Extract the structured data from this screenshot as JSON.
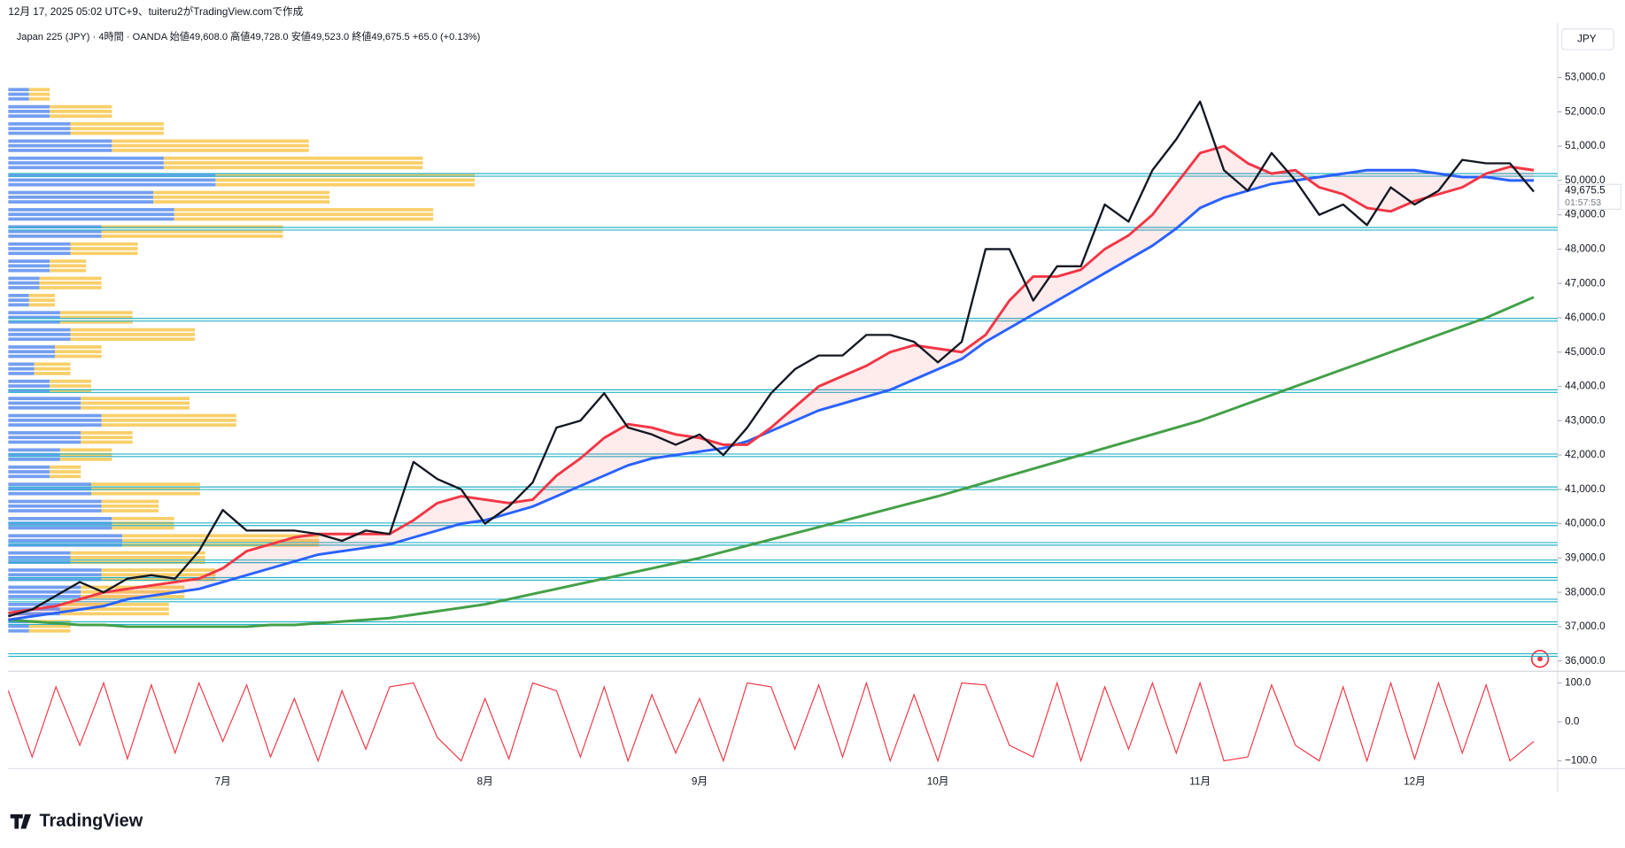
{
  "chart_data": {
    "type": "line",
    "caption": "12月 17, 2025 05:02 UTC+9、tuiteru2がTradingView.comで作成",
    "title": "Japan 225 (JPY) · 4時間 · OANDA  始値49,608.0  高値49,728.0  安値49,523.0  終値49,675.5  +65.0 (+0.13%)",
    "currency": "JPY",
    "brand": "TradingView",
    "last_price_label": "49,675.5",
    "countdown": "01:57:53",
    "categories": [
      null,
      null,
      null,
      null,
      null,
      null,
      null,
      null,
      null,
      "7月",
      null,
      null,
      null,
      null,
      null,
      null,
      null,
      null,
      null,
      null,
      "8月",
      null,
      null,
      null,
      null,
      null,
      null,
      null,
      null,
      "9月",
      null,
      null,
      null,
      null,
      null,
      null,
      null,
      null,
      null,
      "10月",
      null,
      null,
      null,
      null,
      null,
      null,
      null,
      null,
      null,
      null,
      "11月",
      null,
      null,
      null,
      null,
      null,
      null,
      null,
      null,
      "12月",
      null,
      null,
      null,
      null,
      null
    ],
    "series": [
      {
        "color": "#131722",
        "width": 2,
        "values": [
          37300,
          37500,
          37900,
          38300,
          38000,
          38400,
          38500,
          38400,
          39200,
          40400,
          39800,
          39800,
          39800,
          39700,
          39500,
          39800,
          39700,
          41800,
          41300,
          41000,
          40000,
          40500,
          41200,
          42800,
          43000,
          43800,
          42800,
          42600,
          42300,
          42600,
          42000,
          42800,
          43800,
          44500,
          44900,
          44900,
          45500,
          45500,
          45300,
          44700,
          45300,
          48000,
          48000,
          46500,
          47500,
          47500,
          49300,
          48800,
          50300,
          51200,
          52300,
          50300,
          49700,
          50800,
          50000,
          49000,
          49300,
          48700,
          49800,
          49300,
          49700,
          50600,
          50500,
          50500,
          49675.5
        ]
      },
      {
        "color": "#f23645",
        "width": 2.5,
        "values": [
          37400,
          37500,
          37600,
          37800,
          38000,
          38100,
          38200,
          38300,
          38400,
          38700,
          39200,
          39400,
          39600,
          39700,
          39700,
          39700,
          39700,
          40100,
          40600,
          40800,
          40700,
          40600,
          40700,
          41400,
          41900,
          42500,
          42900,
          42800,
          42600,
          42500,
          42300,
          42300,
          42800,
          43400,
          44000,
          44300,
          44600,
          45000,
          45200,
          45100,
          45000,
          45500,
          46500,
          47200,
          47200,
          47400,
          48000,
          48400,
          49000,
          49900,
          50800,
          51000,
          50500,
          50200,
          50300,
          49800,
          49600,
          49200,
          49100,
          49400,
          49600,
          49800,
          50200,
          50400,
          50300
        ]
      },
      {
        "color": "#2962ff",
        "width": 2.5,
        "values": [
          37200,
          37300,
          37400,
          37500,
          37600,
          37800,
          37900,
          38000,
          38100,
          38300,
          38500,
          38700,
          38900,
          39100,
          39200,
          39300,
          39400,
          39600,
          39800,
          40000,
          40100,
          40300,
          40500,
          40800,
          41100,
          41400,
          41700,
          41900,
          42000,
          42100,
          42200,
          42400,
          42700,
          43000,
          43300,
          43500,
          43700,
          43900,
          44200,
          44500,
          44800,
          45300,
          45700,
          46100,
          46500,
          46900,
          47300,
          47700,
          48100,
          48600,
          49200,
          49500,
          49700,
          49900,
          50000,
          50100,
          50200,
          50300,
          50300,
          50300,
          50200,
          50100,
          50100,
          50000,
          50000
        ]
      },
      {
        "color": "#43a047",
        "width": 2.5,
        "values": [
          37200,
          37150,
          37100,
          37050,
          37050,
          37000,
          37000,
          37000,
          37000,
          37000,
          37000,
          37050,
          37050,
          37100,
          37150,
          37200,
          37250,
          37350,
          37450,
          37550,
          37650,
          37800,
          37950,
          38100,
          38250,
          38400,
          38550,
          38700,
          38850,
          39000,
          39180,
          39360,
          39540,
          39720,
          39900,
          40080,
          40260,
          40440,
          40620,
          40800,
          41000,
          41200,
          41400,
          41600,
          41800,
          42000,
          42200,
          42400,
          42600,
          42800,
          43000,
          43250,
          43500,
          43750,
          44000,
          44250,
          44500,
          44750,
          45000,
          45250,
          45500,
          45750,
          46000,
          46300,
          46600
        ]
      }
    ],
    "ylim": [
      35700,
      53900
    ],
    "yticks": [
      {
        "value": 53000,
        "label": "53,000.0"
      },
      {
        "value": 52000,
        "label": "52,000.0"
      },
      {
        "value": 51000,
        "label": "51,000.0"
      },
      {
        "value": 50000,
        "label": "50,000.0"
      },
      {
        "value": 49000,
        "label": "49,000.0"
      },
      {
        "value": 48000,
        "label": "48,000.0"
      },
      {
        "value": 47000,
        "label": "47,000.0"
      },
      {
        "value": 46000,
        "label": "46,000.0"
      },
      {
        "value": 45000,
        "label": "45,000.0"
      },
      {
        "value": 44000,
        "label": "44,000.0"
      },
      {
        "value": 43000,
        "label": "43,000.0"
      },
      {
        "value": 42000,
        "label": "42,000.0"
      },
      {
        "value": 41000,
        "label": "41,000.0"
      },
      {
        "value": 40000,
        "label": "40,000.0"
      },
      {
        "value": 39000,
        "label": "39,000.0"
      },
      {
        "value": 38000,
        "label": "38,000.0"
      },
      {
        "value": 37000,
        "label": "37,000.0"
      },
      {
        "value": 36000,
        "label": "36,000.0"
      }
    ],
    "levels": [
      50170,
      48600,
      45950,
      43870,
      42000,
      41040,
      39990,
      39420,
      38910,
      38400,
      37770,
      37110,
      36180
    ],
    "levels_color": "#26b3c9",
    "volume_profile": {
      "prices": [
        52500,
        52000,
        51500,
        51000,
        50500,
        50000,
        49500,
        49000,
        48500,
        48000,
        47500,
        47000,
        46500,
        46000,
        45500,
        45000,
        44500,
        44000,
        43500,
        43000,
        42500,
        42000,
        41500,
        41000,
        40500,
        40000,
        39500,
        39000,
        38500,
        38000,
        37500,
        37000
      ],
      "down": [
        20,
        40,
        60,
        100,
        150,
        200,
        140,
        160,
        90,
        60,
        40,
        30,
        20,
        50,
        60,
        45,
        25,
        40,
        70,
        90,
        70,
        50,
        40,
        80,
        90,
        100,
        110,
        60,
        90,
        70,
        50,
        20
      ],
      "up": [
        20,
        60,
        90,
        190,
        250,
        250,
        170,
        250,
        175,
        65,
        35,
        60,
        25,
        70,
        120,
        45,
        35,
        40,
        105,
        130,
        50,
        50,
        30,
        105,
        55,
        60,
        190,
        130,
        110,
        100,
        105,
        40
      ],
      "down_color": "#5b8def",
      "up_color": "#f7c343"
    },
    "oscillator": {
      "color": "#f23645",
      "ylim": [
        -120,
        130
      ],
      "yticks": [
        {
          "value": 100,
          "label": "100.0"
        },
        {
          "value": 0,
          "label": "0.0"
        },
        {
          "value": -100,
          "label": "−100.0"
        }
      ],
      "values": [
        80,
        -90,
        90,
        -60,
        100,
        -95,
        95,
        -80,
        100,
        -50,
        95,
        -90,
        60,
        -100,
        80,
        -70,
        90,
        100,
        -40,
        -100,
        60,
        -95,
        100,
        80,
        -90,
        90,
        -100,
        70,
        -80,
        60,
        -100,
        100,
        90,
        -70,
        95,
        -90,
        100,
        -100,
        70,
        -100,
        100,
        95,
        -60,
        -90,
        100,
        -100,
        90,
        -70,
        100,
        -80,
        100,
        -100,
        -90,
        95,
        -60,
        -100,
        90,
        -100,
        100,
        -95,
        100,
        -80,
        95,
        -100,
        -50
      ]
    }
  }
}
